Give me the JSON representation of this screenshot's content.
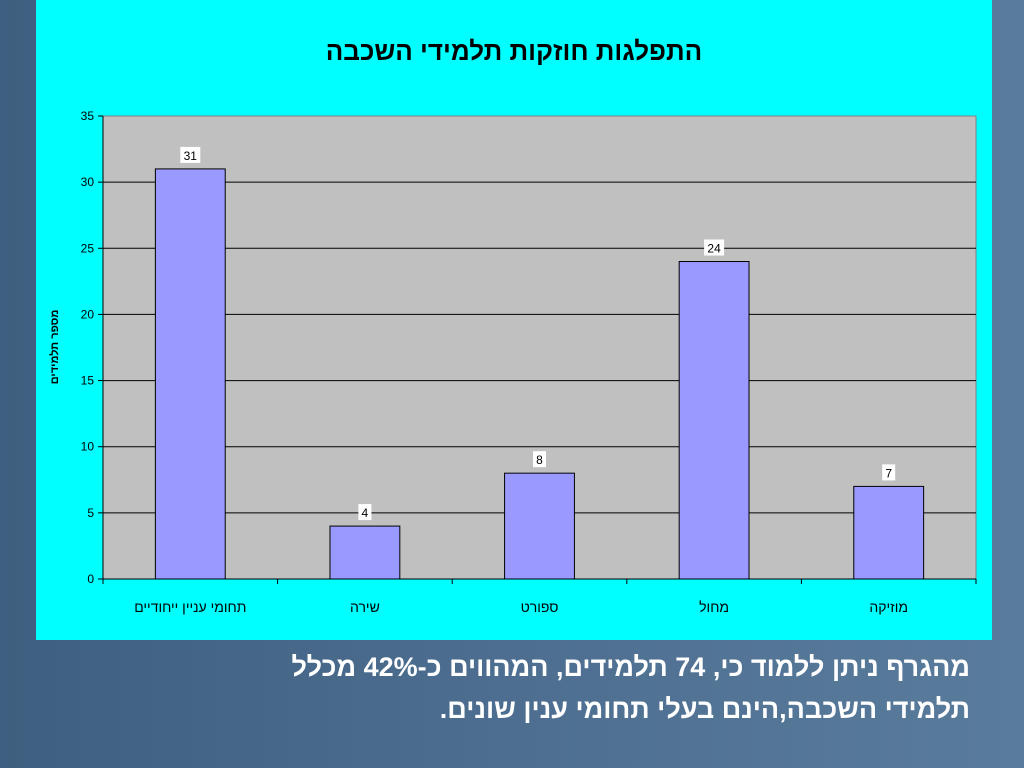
{
  "chart_data": {
    "type": "bar",
    "title": "התפלגות חוזקות תלמידי השכבה",
    "ylabel": "מספר תלמידים",
    "xlabel": "",
    "categories": [
      "תחומי עניין ייחודיים",
      "שירה",
      "ספורט",
      "מחול",
      "מוזיקה"
    ],
    "values": [
      31,
      4,
      8,
      24,
      7
    ],
    "ylim": [
      0,
      35
    ],
    "yticks": [
      0,
      5,
      10,
      15,
      20,
      25,
      30,
      35
    ],
    "grid": true,
    "data_labels": true
  },
  "colors": {
    "panel_bg": "#00ffff",
    "plot_bg": "#c0c0c0",
    "bar_fill": "#9999ff",
    "bar_stroke": "#000000",
    "gridline": "#000000"
  },
  "caption": {
    "line1": "מהגרף ניתן ללמוד כי, 74 תלמידים, המהווים כ-42% מכלל",
    "line2": "תלמידי השכבה,הינם בעלי תחומי ענין שונים."
  }
}
